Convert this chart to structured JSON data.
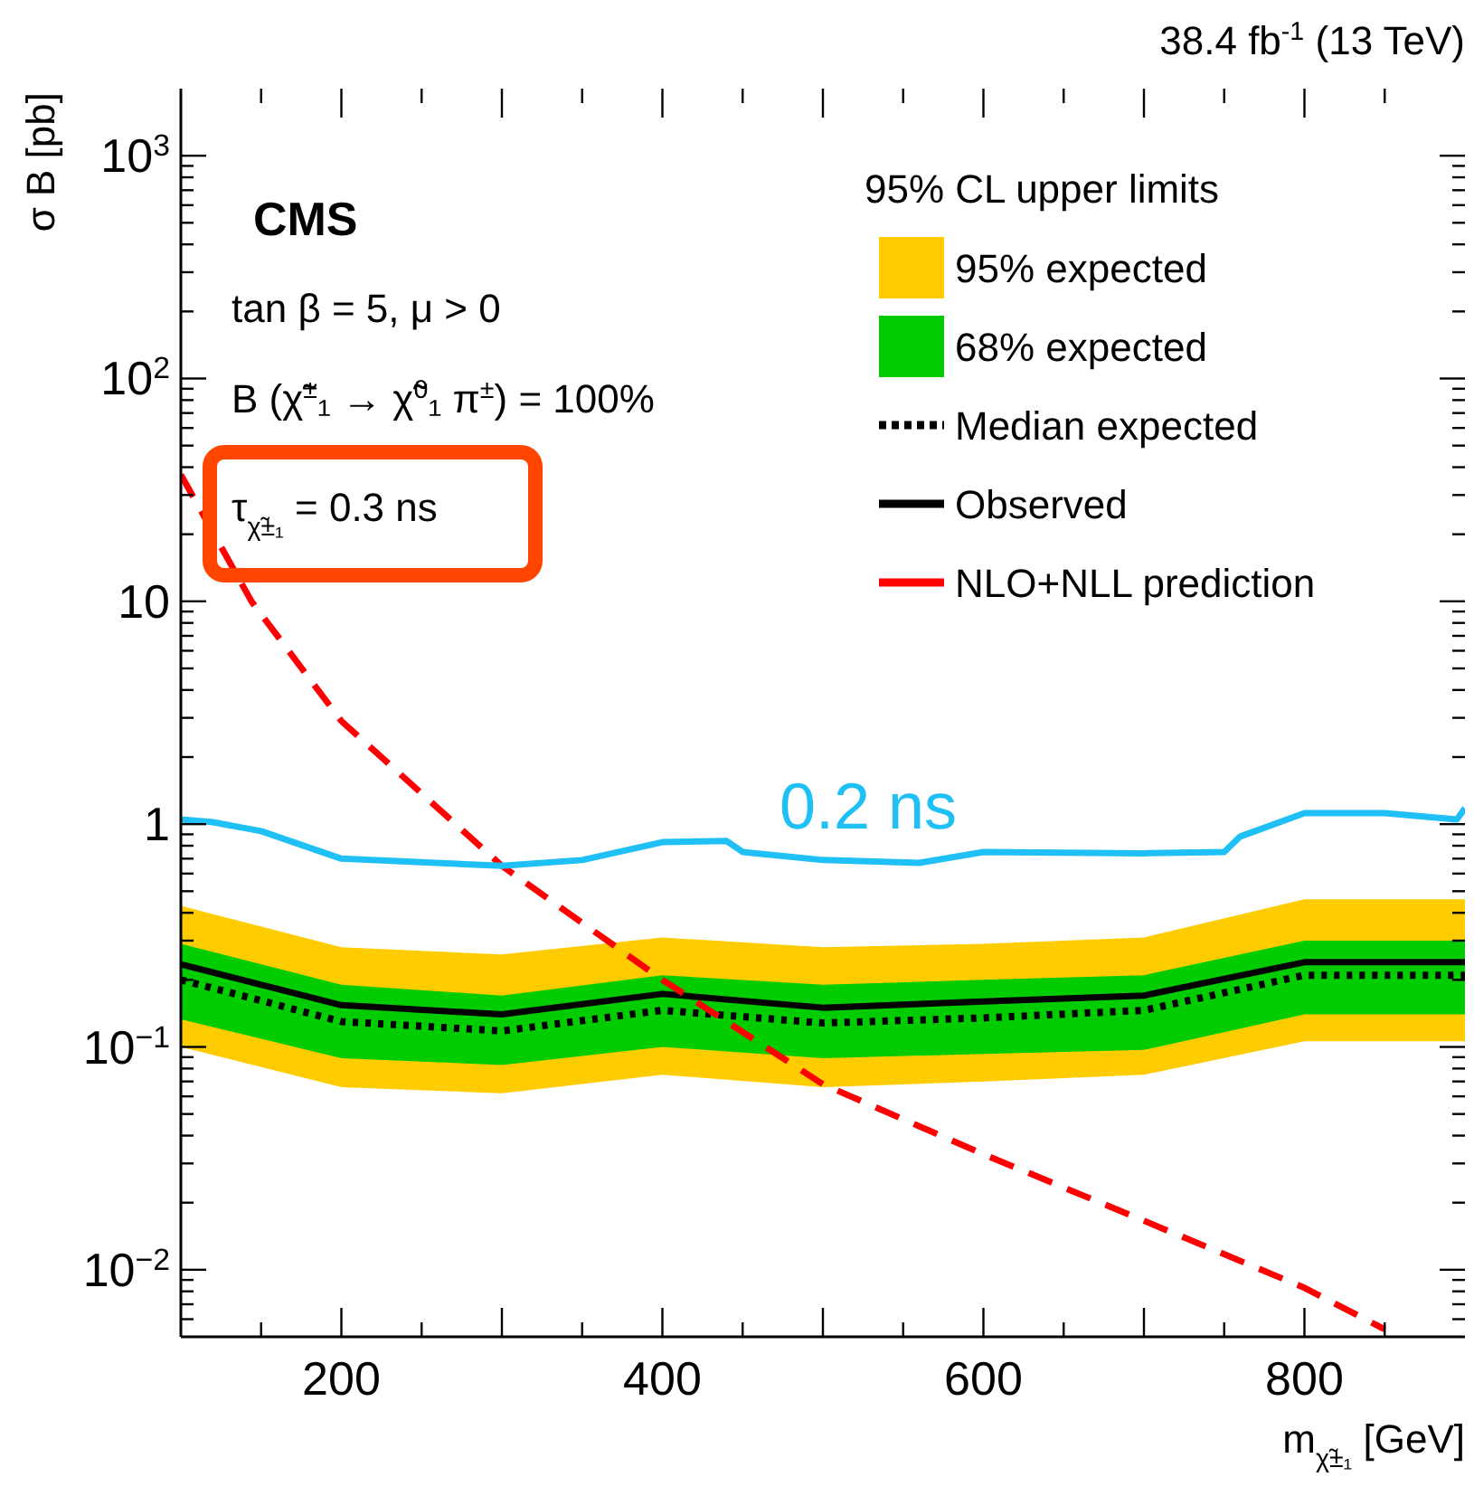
{
  "chart_data": {
    "type": "line",
    "title": "38.4 fb$^{-1}$ (13 TeV)",
    "xlabel": "m$_{χ̃±₁}$ [GeV]",
    "ylabel": "σ B [pb]",
    "legend_title": "95% CL upper limits",
    "legend": "top right",
    "log": "y",
    "xlim": [
      100,
      900
    ],
    "ylim": [
      0.005,
      2000
    ],
    "xticks": [
      {
        "value": 150,
        "label": null
      },
      200,
      {
        "value": 250,
        "label": null
      },
      {
        "value": 300,
        "label": null
      },
      {
        "value": 350,
        "label": null
      },
      400,
      {
        "value": 450,
        "label": null
      },
      {
        "value": 500,
        "label": null
      },
      {
        "value": 550,
        "label": null
      },
      600,
      {
        "value": 650,
        "label": null
      },
      {
        "value": 700,
        "label": null
      },
      {
        "value": 750,
        "label": null
      },
      800,
      {
        "value": 850,
        "label": null
      }
    ],
    "yticks": [
      {
        "value": 0.006,
        "label": null
      },
      {
        "value": 0.007,
        "label": null
      },
      {
        "value": 0.008,
        "label": null
      },
      {
        "value": 0.009,
        "label": null
      },
      {
        "value": 0.01,
        "label": "10$^{−2}$"
      },
      {
        "value": 0.02,
        "label": null
      },
      {
        "value": 0.03,
        "label": null
      },
      {
        "value": 0.04,
        "label": null
      },
      {
        "value": 0.05,
        "label": null
      },
      {
        "value": 0.06,
        "label": null
      },
      {
        "value": 0.07,
        "label": null
      },
      {
        "value": 0.08,
        "label": null
      },
      {
        "value": 0.09,
        "label": null
      },
      {
        "value": 0.1,
        "label": "10$^{−1}$"
      },
      {
        "value": 0.2,
        "label": null
      },
      {
        "value": 0.3,
        "label": null
      },
      {
        "value": 0.4,
        "label": null
      },
      {
        "value": 0.5,
        "label": null
      },
      {
        "value": 0.6,
        "label": null
      },
      {
        "value": 0.7,
        "label": null
      },
      {
        "value": 0.8,
        "label": null
      },
      {
        "value": 0.9,
        "label": null
      },
      1,
      {
        "value": 2,
        "label": null
      },
      {
        "value": 3,
        "label": null
      },
      {
        "value": 4,
        "label": null
      },
      {
        "value": 5,
        "label": null
      },
      {
        "value": 6,
        "label": null
      },
      {
        "value": 7,
        "label": null
      },
      {
        "value": 8,
        "label": null
      },
      {
        "value": 9,
        "label": null
      },
      10,
      {
        "value": 20,
        "label": null
      },
      {
        "value": 30,
        "label": null
      },
      {
        "value": 40,
        "label": null
      },
      {
        "value": 50,
        "label": null
      },
      {
        "value": 60,
        "label": null
      },
      {
        "value": 70,
        "label": null
      },
      {
        "value": 80,
        "label": null
      },
      {
        "value": 90,
        "label": null
      },
      {
        "value": 100,
        "label": "10$^{2}$"
      },
      {
        "value": 200,
        "label": null
      },
      {
        "value": 300,
        "label": null
      },
      {
        "value": 400,
        "label": null
      },
      {
        "value": 500,
        "label": null
      },
      {
        "value": 600,
        "label": null
      },
      {
        "value": 700,
        "label": null
      },
      {
        "value": 800,
        "label": null
      },
      {
        "value": 900,
        "label": null
      },
      {
        "value": 1000,
        "label": "10$^{3}$"
      }
    ],
    "x": [
      100,
      200,
      300,
      400,
      500,
      600,
      700,
      800,
      900
    ],
    "series": [
      {
        "name": "95% expected",
        "color": "#ffcc00",
        "values": [
          null,
          null,
          null,
          null,
          null,
          null,
          null,
          null,
          null
        ],
        "lower": [
          0.1,
          0.066,
          0.062,
          0.075,
          0.066,
          0.07,
          0.075,
          0.106,
          0.106
        ],
        "upper": [
          0.43,
          0.28,
          0.26,
          0.31,
          0.28,
          0.29,
          0.31,
          0.46,
          0.46
        ]
      },
      {
        "name": "68% expected",
        "color": "#00cc00",
        "values": [
          null,
          null,
          null,
          null,
          null,
          null,
          null,
          null,
          null
        ],
        "lower": [
          0.133,
          0.089,
          0.083,
          0.1,
          0.089,
          0.093,
          0.097,
          0.14,
          0.14
        ],
        "upper": [
          0.29,
          0.19,
          0.17,
          0.21,
          0.19,
          0.2,
          0.21,
          0.3,
          0.3
        ]
      },
      {
        "name": "Median expected",
        "color": "#000000",
        "line_style": "dotted",
        "values": [
          0.2,
          0.13,
          0.118,
          0.146,
          0.128,
          0.135,
          0.146,
          0.21,
          0.21
        ]
      },
      {
        "name": "Observed",
        "color": "#000000",
        "values": [
          0.235,
          0.154,
          0.14,
          0.173,
          0.15,
          0.16,
          0.17,
          0.24,
          0.24
        ]
      },
      {
        "name": "NLO+NLL prediction",
        "color": "#ff0000",
        "line_style": "dashed",
        "x": [
          100,
          144,
          200,
          300,
          400,
          500,
          600,
          700,
          800,
          850
        ],
        "values": [
          37,
          10,
          2.9,
          0.65,
          0.2,
          0.068,
          0.033,
          0.0166,
          0.0083,
          0.0054
        ]
      },
      {
        "color": "#1ec0f5",
        "x": [
          100,
          120,
          150,
          200,
          300,
          350,
          400,
          440,
          450,
          500,
          560,
          600,
          700,
          750,
          760,
          800,
          850,
          895,
          900
        ],
        "values": [
          1.05,
          1.02,
          0.93,
          0.7,
          0.65,
          0.69,
          0.83,
          0.84,
          0.75,
          0.69,
          0.67,
          0.75,
          0.74,
          0.75,
          0.88,
          1.12,
          1.12,
          1.05,
          1.18
        ]
      }
    ],
    "annotations": [
      "CMS",
      "tan β = 5, μ > 0",
      "B (χ̃$^{±}$₁ → χ̃$^{0}$₁ π$^{±}$) = 100%",
      "τ$_{χ̃±₁}$ = 0.3 ns",
      "0.2 ns"
    ]
  }
}
